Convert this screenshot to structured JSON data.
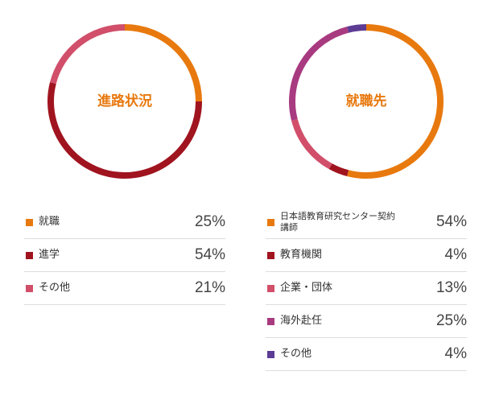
{
  "colors": {
    "orange": "#E8790E",
    "dark_red": "#A0141F",
    "pink": "#D14F6A",
    "magenta": "#A83A80",
    "purple": "#5C3C94",
    "title": "#E8790E"
  },
  "chart_data": [
    {
      "type": "pie",
      "donut": true,
      "title": "進路状況",
      "categories": [
        "就職",
        "進学",
        "その他"
      ],
      "values": [
        25,
        54,
        21
      ],
      "value_labels": [
        "25%",
        "54%",
        "21%"
      ],
      "colors": [
        "#E8790E",
        "#A0141F",
        "#D14F6A"
      ]
    },
    {
      "type": "pie",
      "donut": true,
      "title": "就職先",
      "categories": [
        "日本語教育研究センター契約講師",
        "教育機関",
        "企業・団体",
        "海外赴任",
        "その他"
      ],
      "values": [
        54,
        4,
        13,
        25,
        4
      ],
      "value_labels": [
        "54%",
        "4%",
        "13%",
        "25%",
        "4%"
      ],
      "colors": [
        "#E8790E",
        "#A0141F",
        "#D14F6A",
        "#A83A80",
        "#5C3C94"
      ]
    }
  ]
}
